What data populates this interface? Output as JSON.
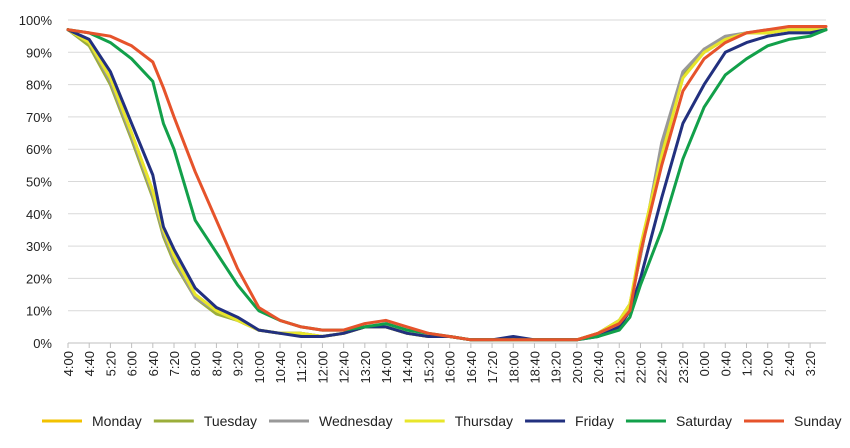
{
  "chart_data": {
    "type": "line",
    "title": "",
    "xlabel": "",
    "ylabel": "",
    "ylim": [
      0,
      100
    ],
    "grid": "horizontal",
    "legend_position": "bottom",
    "y_ticks": [
      "0%",
      "10%",
      "20%",
      "30%",
      "40%",
      "50%",
      "60%",
      "70%",
      "80%",
      "90%",
      "100%"
    ],
    "x_ticks": [
      "4:00",
      "4:40",
      "5:20",
      "6:00",
      "6:40",
      "7:20",
      "8:00",
      "8:40",
      "9:20",
      "10:00",
      "10:40",
      "11:20",
      "12:00",
      "12:40",
      "13:20",
      "14:00",
      "14:40",
      "15:20",
      "16:00",
      "16:40",
      "17:20",
      "18:00",
      "18:40",
      "19:20",
      "20:00",
      "20:40",
      "21:20",
      "22:00",
      "22:40",
      "23:20",
      "0:00",
      "0:40",
      "1:20",
      "2:00",
      "2:40",
      "3:20"
    ],
    "x": [
      "4:00",
      "4:40",
      "5:20",
      "6:00",
      "6:40",
      "7:00",
      "7:20",
      "8:00",
      "8:40",
      "9:20",
      "10:00",
      "10:40",
      "11:20",
      "12:00",
      "12:40",
      "13:20",
      "14:00",
      "14:40",
      "15:20",
      "16:00",
      "16:40",
      "17:20",
      "18:00",
      "18:40",
      "19:20",
      "20:00",
      "20:40",
      "21:20",
      "21:40",
      "22:00",
      "22:40",
      "23:20",
      "0:00",
      "0:40",
      "1:20",
      "2:00",
      "2:40",
      "3:20",
      "3:50"
    ],
    "series": [
      {
        "name": "Monday",
        "color": "#F2C200",
        "values": [
          97,
          93,
          82,
          65,
          47,
          35,
          27,
          15,
          10,
          7,
          4,
          3,
          3,
          2,
          3,
          5,
          5,
          3,
          2,
          2,
          1,
          1,
          1,
          1,
          1,
          1,
          3,
          7,
          12,
          28,
          60,
          83,
          91,
          94,
          96,
          96,
          97,
          97,
          97
        ]
      },
      {
        "name": "Tuesday",
        "color": "#9BAE3A",
        "values": [
          97,
          92,
          80,
          63,
          45,
          33,
          25,
          14,
          9,
          7,
          4,
          3,
          3,
          2,
          3,
          5,
          5,
          3,
          2,
          2,
          1,
          1,
          1,
          1,
          1,
          1,
          3,
          7,
          12,
          27,
          60,
          83,
          90,
          94,
          96,
          96,
          97,
          97,
          97
        ]
      },
      {
        "name": "Wednesday",
        "color": "#999999",
        "values": [
          97,
          93,
          81,
          64,
          46,
          34,
          26,
          14,
          10,
          7,
          4,
          3,
          3,
          2,
          3,
          5,
          5,
          3,
          2,
          2,
          1,
          1,
          1,
          1,
          1,
          1,
          3,
          7,
          12,
          27,
          62,
          84,
          91,
          95,
          96,
          97,
          97,
          97,
          97
        ]
      },
      {
        "name": "Thursday",
        "color": "#E8E62A",
        "values": [
          97,
          93,
          82,
          65,
          47,
          35,
          27,
          15,
          10,
          7,
          4,
          3,
          3,
          2,
          3,
          5,
          5,
          3,
          2,
          2,
          1,
          1,
          1,
          1,
          1,
          1,
          3,
          7,
          12,
          30,
          58,
          82,
          90,
          94,
          96,
          96,
          97,
          97,
          97
        ]
      },
      {
        "name": "Friday",
        "color": "#22307F",
        "values": [
          97,
          94,
          84,
          68,
          52,
          36,
          29,
          17,
          11,
          8,
          4,
          3,
          2,
          2,
          3,
          5,
          5,
          3,
          2,
          2,
          1,
          1,
          2,
          1,
          1,
          1,
          2,
          5,
          10,
          20,
          45,
          68,
          80,
          90,
          93,
          95,
          96,
          96,
          97
        ]
      },
      {
        "name": "Saturday",
        "color": "#12A04A",
        "values": [
          97,
          96,
          93,
          88,
          81,
          68,
          60,
          38,
          28,
          18,
          10,
          7,
          5,
          4,
          4,
          5,
          6,
          4,
          3,
          2,
          1,
          1,
          1,
          1,
          1,
          1,
          2,
          4,
          8,
          18,
          35,
          57,
          73,
          83,
          88,
          92,
          94,
          95,
          97
        ]
      },
      {
        "name": "Sunday",
        "color": "#E6532B",
        "values": [
          97,
          96,
          95,
          92,
          87,
          79,
          70,
          53,
          38,
          23,
          11,
          7,
          5,
          4,
          4,
          6,
          7,
          5,
          3,
          2,
          1,
          1,
          1,
          1,
          1,
          1,
          3,
          6,
          10,
          28,
          55,
          78,
          88,
          93,
          96,
          97,
          98,
          98,
          98
        ]
      }
    ]
  }
}
